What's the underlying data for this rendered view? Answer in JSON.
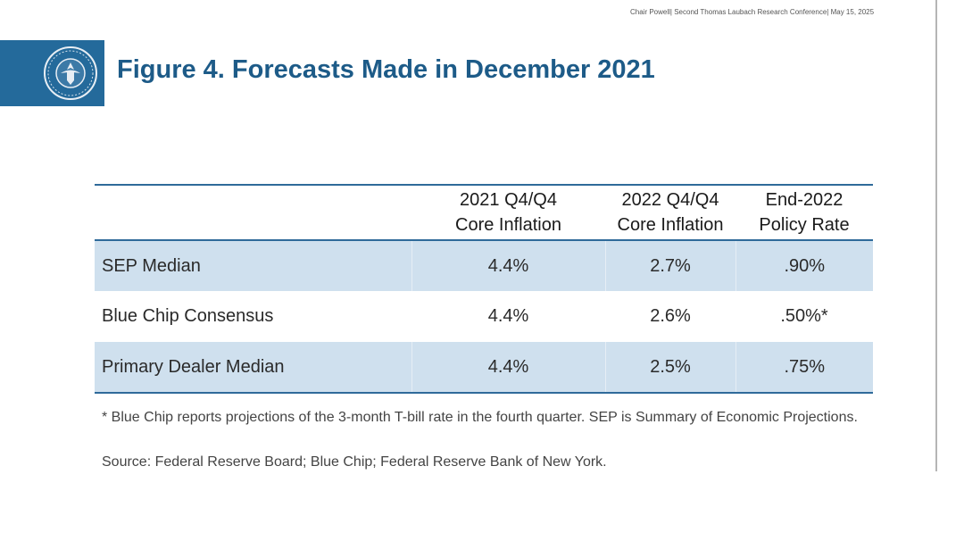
{
  "header": {
    "note": "Chair Powell| Second Thomas Laubach Research Conference| May 15, 2025",
    "seal_icon": "federal-reserve-seal-icon"
  },
  "title": "Figure 4. Forecasts Made in December 2021",
  "colors": {
    "brand_blue": "#246a9b",
    "title_blue": "#1d5b88",
    "row_shading": "#cfe0ee"
  },
  "table": {
    "columns": [
      {
        "line1": "",
        "line2": ""
      },
      {
        "line1": "2021 Q4/Q4",
        "line2": "Core Inflation"
      },
      {
        "line1": "2022 Q4/Q4",
        "line2": "Core Inflation"
      },
      {
        "line1": "End-2022",
        "line2": "Policy Rate"
      }
    ],
    "rows": [
      {
        "label": "SEP Median",
        "values": [
          "4.4%",
          "2.7%",
          ".90%"
        ],
        "shaded": true
      },
      {
        "label": "Blue Chip Consensus",
        "values": [
          "4.4%",
          "2.6%",
          ".50%*"
        ],
        "shaded": false
      },
      {
        "label": "Primary Dealer Median",
        "values": [
          "4.4%",
          "2.5%",
          ".75%"
        ],
        "shaded": true
      }
    ]
  },
  "footnote": "* Blue Chip reports projections of the 3-month T-bill rate in the fourth quarter. SEP is Summary of Economic Projections.",
  "source": "Source: Federal Reserve Board; Blue Chip; Federal Reserve Bank of New York."
}
